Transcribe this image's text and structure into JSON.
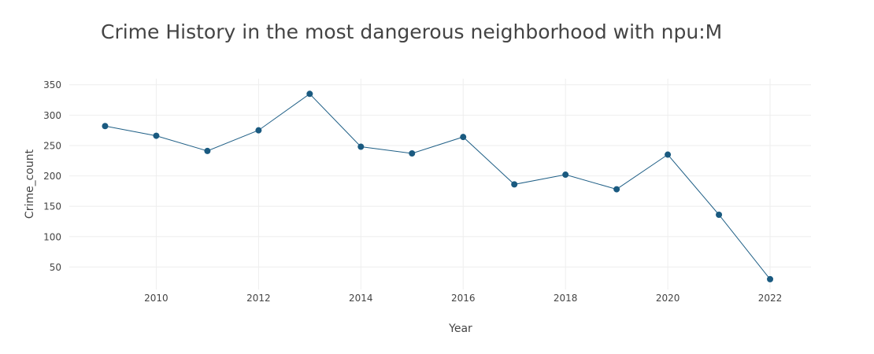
{
  "chart_data": {
    "type": "line",
    "title": "Crime History in the most dangerous neighborhood with npu:M",
    "xlabel": "Year",
    "ylabel": "Crime_count",
    "x": [
      2009,
      2010,
      2011,
      2012,
      2013,
      2014,
      2015,
      2016,
      2017,
      2018,
      2019,
      2020,
      2021,
      2022
    ],
    "series": [
      {
        "values": [
          282,
          266,
          241,
          275,
          335,
          248,
          237,
          264,
          186,
          202,
          178,
          235,
          136,
          30
        ]
      }
    ],
    "xlim": [
      2008.3,
      2022.8
    ],
    "ylim": [
      13,
      360
    ],
    "xticks": [
      2010,
      2012,
      2014,
      2016,
      2018,
      2020,
      2022
    ],
    "xtick_labels": [
      "2010",
      "2012",
      "2014",
      "2016",
      "2018",
      "2020",
      "2022"
    ],
    "yticks": [
      50,
      100,
      150,
      200,
      250,
      300,
      350
    ],
    "ytick_labels": [
      "50",
      "100",
      "150",
      "200",
      "250",
      "300",
      "350"
    ],
    "grid": true,
    "legend": "none",
    "colors": {
      "line": "#1f5f86",
      "marker": "#1a5a80",
      "grid": "#eeeeee",
      "text": "#444444"
    }
  }
}
